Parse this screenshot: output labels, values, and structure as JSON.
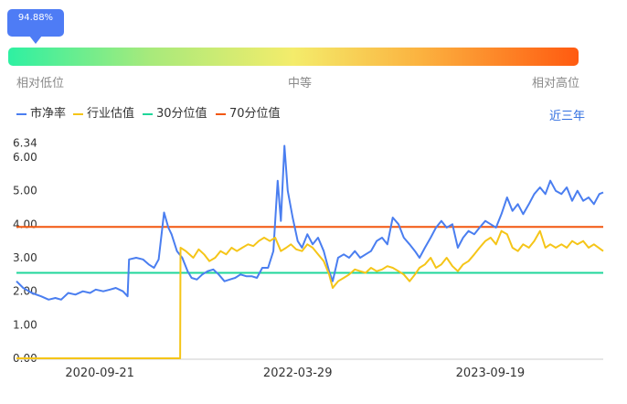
{
  "gauge": {
    "value_label": "94.88%",
    "percentile": 0.9488,
    "labels": {
      "low": "相对低位",
      "mid": "中等",
      "high": "相对高位"
    }
  },
  "legend": {
    "items": [
      {
        "label": "市净率",
        "color": "#4a7ef0"
      },
      {
        "label": "行业估值",
        "color": "#f5c518"
      },
      {
        "label": "30分位值",
        "color": "#1fd69a"
      },
      {
        "label": "70分位值",
        "color": "#f2570f"
      }
    ],
    "period_button": "近三年"
  },
  "chart_data": {
    "type": "line",
    "x_tick_labels": [
      "2020-09-21",
      "2022-03-29",
      "2023-09-19"
    ],
    "x_range": [
      "2020-02-01",
      "2024-09-30"
    ],
    "y_tick_labels": [
      "0.00",
      "1.00",
      "2.00",
      "3.00",
      "4.00",
      "5.00",
      "6.00",
      "6.34"
    ],
    "ylim": [
      0,
      6.34
    ],
    "y_max_label": "6.34",
    "series": [
      {
        "name": "市净率",
        "color": "#4a7ef0",
        "points": [
          [
            "2020-02-01",
            2.3
          ],
          [
            "2020-02-20",
            2.1
          ],
          [
            "2020-03-15",
            1.95
          ],
          [
            "2020-04-10",
            1.85
          ],
          [
            "2020-05-01",
            1.75
          ],
          [
            "2020-05-20",
            1.8
          ],
          [
            "2020-06-05",
            1.75
          ],
          [
            "2020-06-25",
            1.95
          ],
          [
            "2020-07-15",
            1.9
          ],
          [
            "2020-08-05",
            2.0
          ],
          [
            "2020-08-25",
            1.95
          ],
          [
            "2020-09-10",
            2.05
          ],
          [
            "2020-10-01",
            2.0
          ],
          [
            "2020-10-20",
            2.05
          ],
          [
            "2020-11-05",
            2.1
          ],
          [
            "2020-11-25",
            2.0
          ],
          [
            "2020-12-08",
            1.85
          ],
          [
            "2020-12-12",
            2.95
          ],
          [
            "2021-01-01",
            3.0
          ],
          [
            "2021-01-20",
            2.95
          ],
          [
            "2021-02-05",
            2.8
          ],
          [
            "2021-02-20",
            2.7
          ],
          [
            "2021-03-05",
            2.95
          ],
          [
            "2021-03-20",
            4.35
          ],
          [
            "2021-04-01",
            3.9
          ],
          [
            "2021-04-10",
            3.7
          ],
          [
            "2021-04-25",
            3.2
          ],
          [
            "2021-05-10",
            3.0
          ],
          [
            "2021-05-25",
            2.6
          ],
          [
            "2021-06-05",
            2.4
          ],
          [
            "2021-06-20",
            2.35
          ],
          [
            "2021-07-05",
            2.5
          ],
          [
            "2021-07-20",
            2.6
          ],
          [
            "2021-08-05",
            2.65
          ],
          [
            "2021-08-20",
            2.5
          ],
          [
            "2021-09-05",
            2.3
          ],
          [
            "2021-09-20",
            2.35
          ],
          [
            "2021-10-05",
            2.4
          ],
          [
            "2021-10-20",
            2.5
          ],
          [
            "2021-11-05",
            2.45
          ],
          [
            "2021-11-20",
            2.45
          ],
          [
            "2021-12-05",
            2.4
          ],
          [
            "2021-12-20",
            2.7
          ],
          [
            "2022-01-05",
            2.7
          ],
          [
            "2022-01-20",
            3.2
          ],
          [
            "2022-02-01",
            5.3
          ],
          [
            "2022-02-10",
            4.1
          ],
          [
            "2022-02-20",
            6.34
          ],
          [
            "2022-03-01",
            5.0
          ],
          [
            "2022-03-15",
            4.2
          ],
          [
            "2022-03-29",
            3.5
          ],
          [
            "2022-04-10",
            3.3
          ],
          [
            "2022-04-25",
            3.7
          ],
          [
            "2022-05-10",
            3.4
          ],
          [
            "2022-05-25",
            3.6
          ],
          [
            "2022-06-10",
            3.2
          ],
          [
            "2022-06-25",
            2.6
          ],
          [
            "2022-07-05",
            2.3
          ],
          [
            "2022-07-20",
            3.0
          ],
          [
            "2022-08-05",
            3.1
          ],
          [
            "2022-08-20",
            3.0
          ],
          [
            "2022-09-05",
            3.2
          ],
          [
            "2022-09-20",
            3.0
          ],
          [
            "2022-10-05",
            3.1
          ],
          [
            "2022-10-20",
            3.2
          ],
          [
            "2022-11-05",
            3.5
          ],
          [
            "2022-11-20",
            3.6
          ],
          [
            "2022-12-05",
            3.4
          ],
          [
            "2022-12-20",
            4.2
          ],
          [
            "2023-01-05",
            4.0
          ],
          [
            "2023-01-20",
            3.6
          ],
          [
            "2023-02-05",
            3.4
          ],
          [
            "2023-02-20",
            3.2
          ],
          [
            "2023-03-05",
            3.0
          ],
          [
            "2023-03-20",
            3.3
          ],
          [
            "2023-04-05",
            3.6
          ],
          [
            "2023-04-20",
            3.9
          ],
          [
            "2023-05-05",
            4.1
          ],
          [
            "2023-05-20",
            3.9
          ],
          [
            "2023-06-05",
            4.0
          ],
          [
            "2023-06-20",
            3.3
          ],
          [
            "2023-07-05",
            3.6
          ],
          [
            "2023-07-20",
            3.8
          ],
          [
            "2023-08-05",
            3.7
          ],
          [
            "2023-08-20",
            3.9
          ],
          [
            "2023-09-05",
            4.1
          ],
          [
            "2023-09-20",
            4.0
          ],
          [
            "2023-10-05",
            3.9
          ],
          [
            "2023-10-20",
            4.3
          ],
          [
            "2023-11-05",
            4.8
          ],
          [
            "2023-11-20",
            4.4
          ],
          [
            "2023-12-05",
            4.6
          ],
          [
            "2023-12-20",
            4.3
          ],
          [
            "2024-01-05",
            4.6
          ],
          [
            "2024-01-20",
            4.9
          ],
          [
            "2024-02-05",
            5.1
          ],
          [
            "2024-02-20",
            4.9
          ],
          [
            "2024-03-05",
            5.3
          ],
          [
            "2024-03-20",
            5.0
          ],
          [
            "2024-04-05",
            4.9
          ],
          [
            "2024-04-20",
            5.1
          ],
          [
            "2024-05-05",
            4.7
          ],
          [
            "2024-05-20",
            5.0
          ],
          [
            "2024-06-05",
            4.7
          ],
          [
            "2024-06-20",
            4.8
          ],
          [
            "2024-07-05",
            4.6
          ],
          [
            "2024-07-20",
            4.9
          ],
          [
            "2024-07-31",
            4.95
          ]
        ]
      },
      {
        "name": "行业估值",
        "color": "#f5c518",
        "points": [
          [
            "2020-02-01",
            0.0
          ],
          [
            "2021-05-04",
            0.0
          ],
          [
            "2021-05-05",
            3.3
          ],
          [
            "2021-05-20",
            3.2
          ],
          [
            "2021-06-10",
            3.0
          ],
          [
            "2021-06-25",
            3.25
          ],
          [
            "2021-07-10",
            3.1
          ],
          [
            "2021-07-25",
            2.9
          ],
          [
            "2021-08-10",
            3.0
          ],
          [
            "2021-08-25",
            3.2
          ],
          [
            "2021-09-10",
            3.1
          ],
          [
            "2021-09-25",
            3.3
          ],
          [
            "2021-10-10",
            3.2
          ],
          [
            "2021-10-25",
            3.3
          ],
          [
            "2021-11-10",
            3.4
          ],
          [
            "2021-11-25",
            3.35
          ],
          [
            "2021-12-10",
            3.5
          ],
          [
            "2021-12-25",
            3.6
          ],
          [
            "2022-01-10",
            3.5
          ],
          [
            "2022-01-25",
            3.6
          ],
          [
            "2022-02-10",
            3.2
          ],
          [
            "2022-02-25",
            3.3
          ],
          [
            "2022-03-10",
            3.4
          ],
          [
            "2022-03-25",
            3.25
          ],
          [
            "2022-04-10",
            3.2
          ],
          [
            "2022-04-25",
            3.4
          ],
          [
            "2022-05-10",
            3.3
          ],
          [
            "2022-05-25",
            3.1
          ],
          [
            "2022-06-10",
            2.9
          ],
          [
            "2022-06-25",
            2.5
          ],
          [
            "2022-07-05",
            2.1
          ],
          [
            "2022-07-20",
            2.3
          ],
          [
            "2022-08-05",
            2.4
          ],
          [
            "2022-08-20",
            2.5
          ],
          [
            "2022-09-05",
            2.65
          ],
          [
            "2022-09-20",
            2.6
          ],
          [
            "2022-10-05",
            2.55
          ],
          [
            "2022-10-20",
            2.7
          ],
          [
            "2022-11-05",
            2.6
          ],
          [
            "2022-11-20",
            2.65
          ],
          [
            "2022-12-05",
            2.75
          ],
          [
            "2022-12-20",
            2.7
          ],
          [
            "2023-01-05",
            2.6
          ],
          [
            "2023-01-20",
            2.5
          ],
          [
            "2023-02-05",
            2.3
          ],
          [
            "2023-02-20",
            2.5
          ],
          [
            "2023-03-05",
            2.7
          ],
          [
            "2023-03-20",
            2.8
          ],
          [
            "2023-04-05",
            3.0
          ],
          [
            "2023-04-20",
            2.7
          ],
          [
            "2023-05-05",
            2.8
          ],
          [
            "2023-05-20",
            3.0
          ],
          [
            "2023-06-05",
            2.75
          ],
          [
            "2023-06-20",
            2.6
          ],
          [
            "2023-07-05",
            2.8
          ],
          [
            "2023-07-20",
            2.9
          ],
          [
            "2023-08-05",
            3.1
          ],
          [
            "2023-08-20",
            3.3
          ],
          [
            "2023-09-05",
            3.5
          ],
          [
            "2023-09-20",
            3.6
          ],
          [
            "2023-10-05",
            3.4
          ],
          [
            "2023-10-20",
            3.8
          ],
          [
            "2023-11-05",
            3.7
          ],
          [
            "2023-11-20",
            3.3
          ],
          [
            "2023-12-05",
            3.2
          ],
          [
            "2023-12-20",
            3.4
          ],
          [
            "2024-01-05",
            3.3
          ],
          [
            "2024-01-20",
            3.5
          ],
          [
            "2024-02-05",
            3.8
          ],
          [
            "2024-02-20",
            3.3
          ],
          [
            "2024-03-05",
            3.4
          ],
          [
            "2024-03-20",
            3.3
          ],
          [
            "2024-04-05",
            3.4
          ],
          [
            "2024-04-20",
            3.3
          ],
          [
            "2024-05-05",
            3.5
          ],
          [
            "2024-05-20",
            3.4
          ],
          [
            "2024-06-05",
            3.5
          ],
          [
            "2024-06-20",
            3.3
          ],
          [
            "2024-07-05",
            3.4
          ],
          [
            "2024-07-31",
            3.2
          ]
        ]
      },
      {
        "name": "30分位值",
        "color": "#1fd69a",
        "constant": 2.55
      },
      {
        "name": "70分位值",
        "color": "#f2570f",
        "constant": 3.92
      }
    ],
    "grid": false,
    "legend_position": "top-left"
  }
}
